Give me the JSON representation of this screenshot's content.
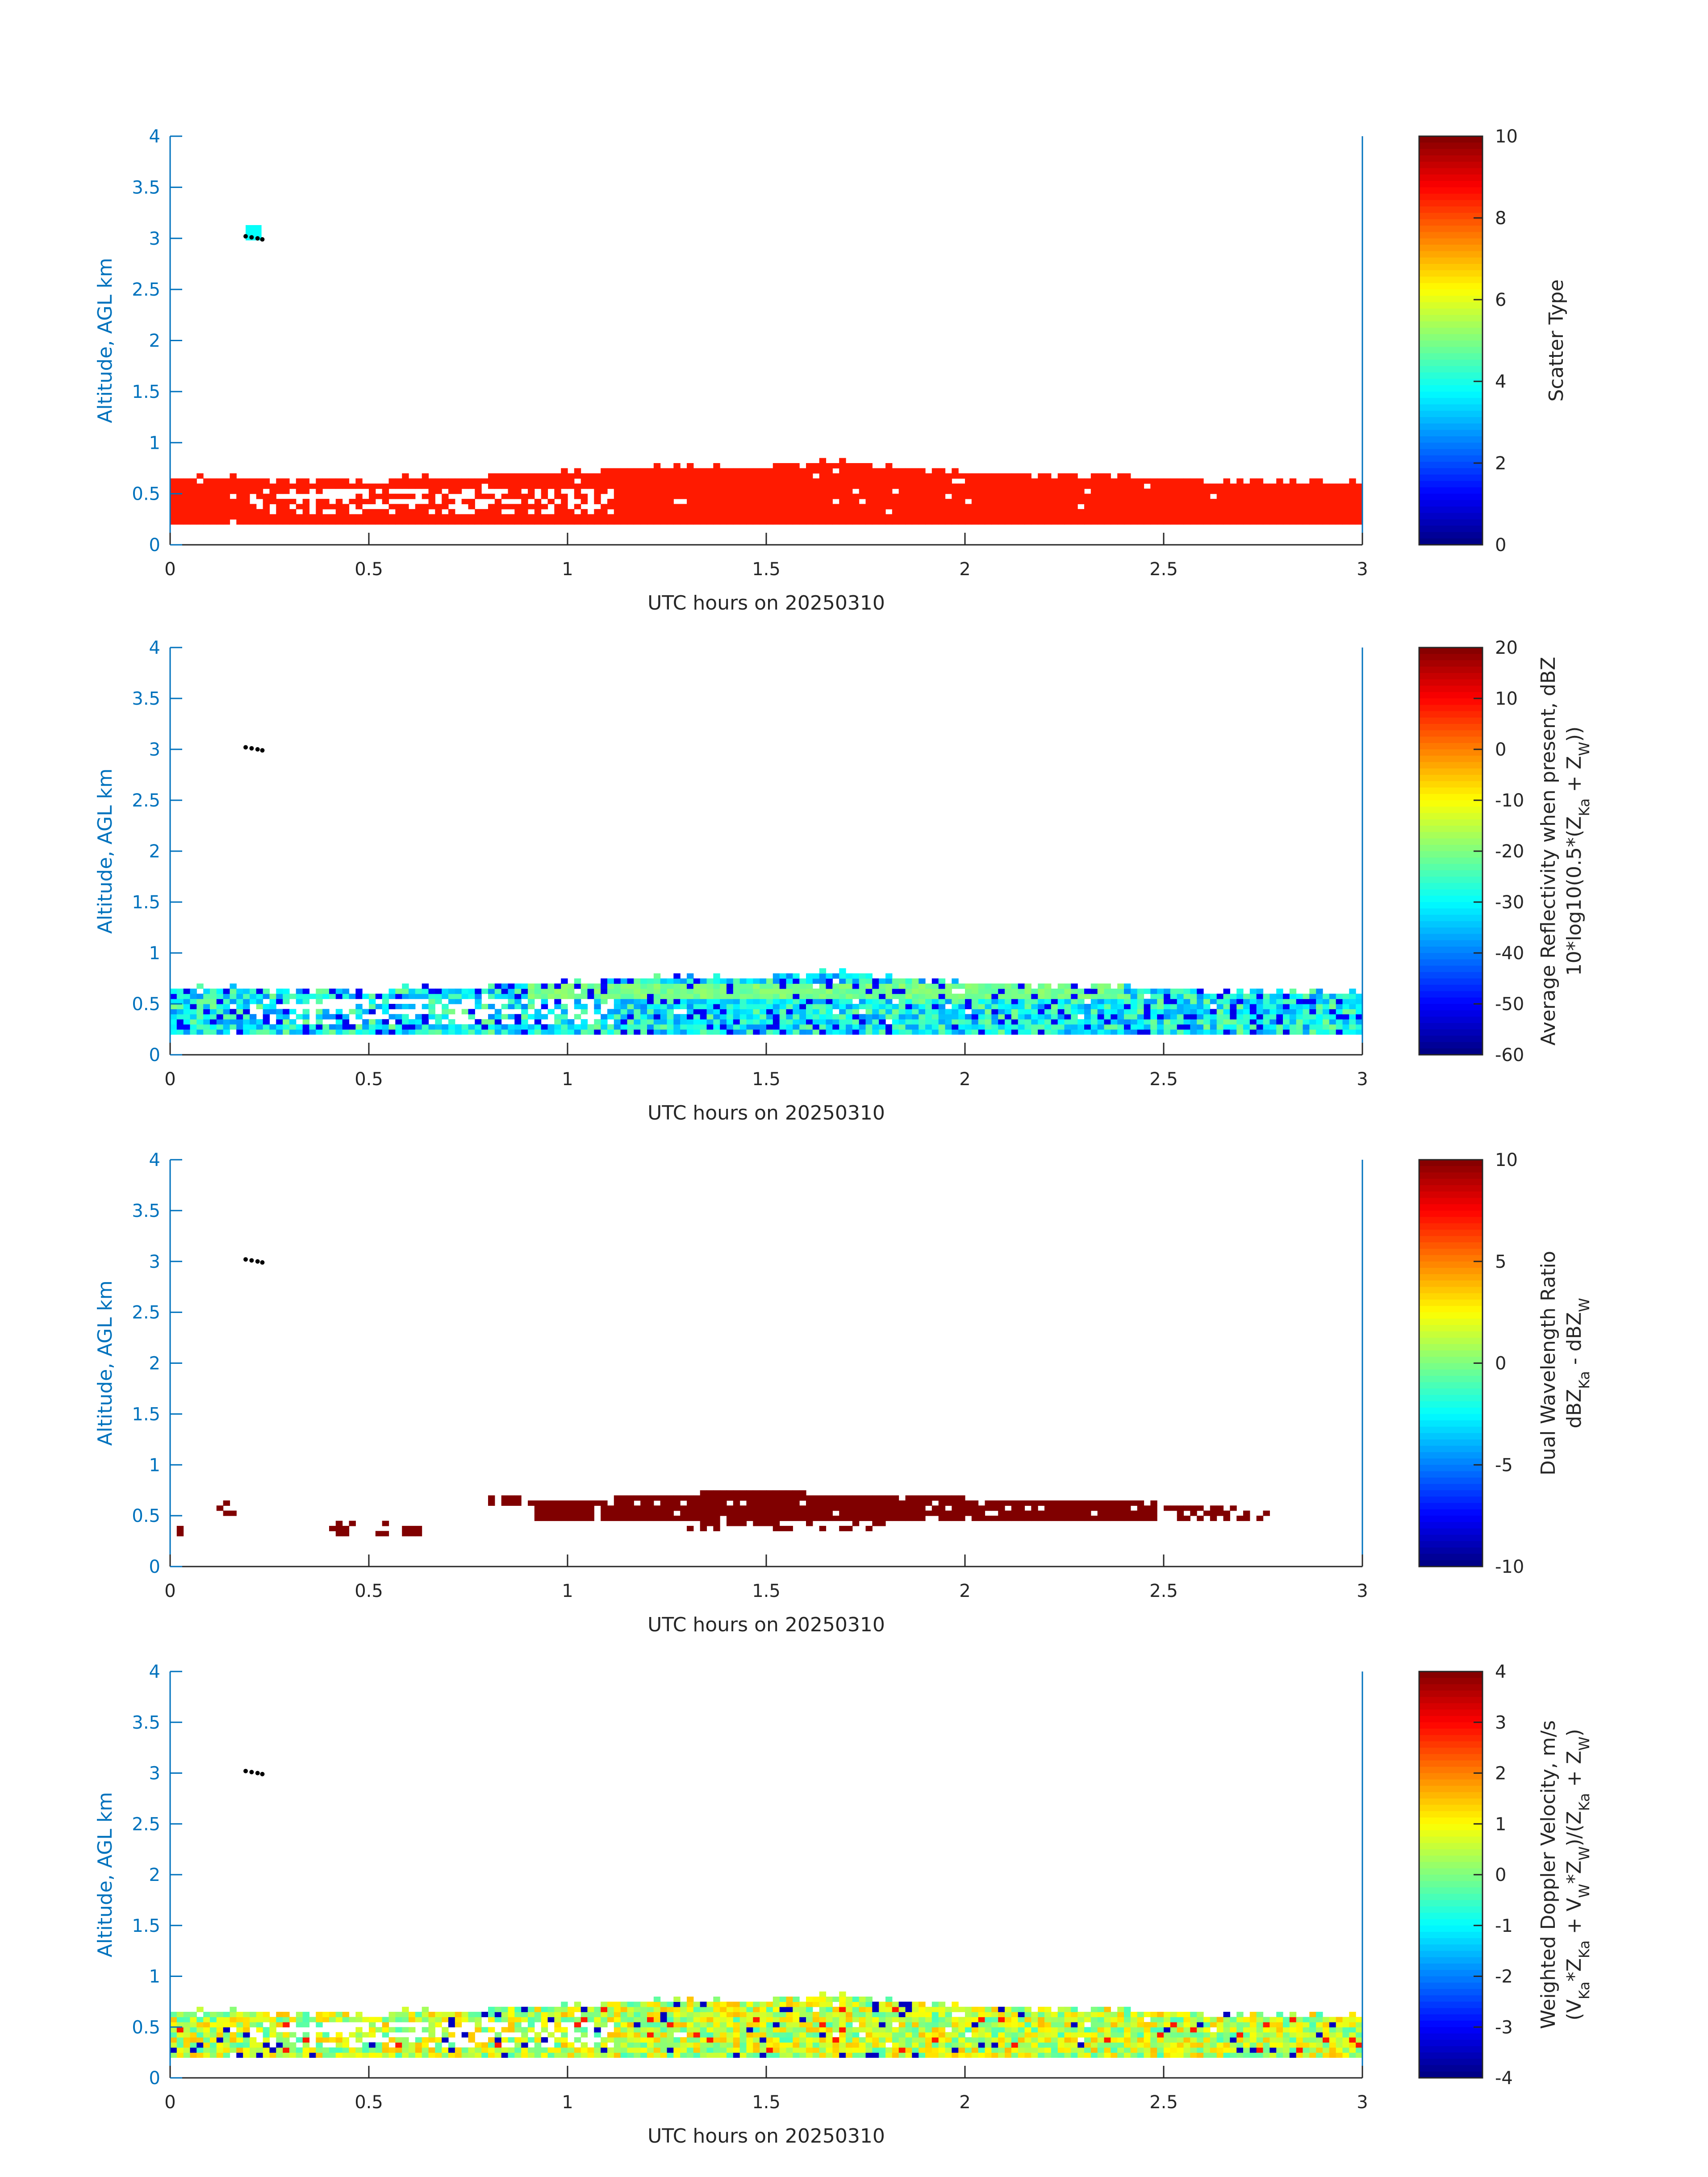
{
  "figure_title": "",
  "chart_data": [
    {
      "type": "heatmap",
      "panel": "Scatter Type",
      "xlabel": "UTC hours on 20250310",
      "ylabel": "Altitude, AGL km",
      "xlim": [
        0,
        3
      ],
      "ylim": [
        0,
        4
      ],
      "xticks": [
        "0",
        "0.5",
        "1",
        "1.5",
        "2",
        "2.5",
        "3"
      ],
      "yticks": [
        "0",
        "0.5",
        "1",
        "1.5",
        "2",
        "2.5",
        "3",
        "3.5",
        "4"
      ],
      "colorbar_label": [
        "Scatter Type"
      ],
      "colorbar_range": [
        0,
        10
      ],
      "colorbar_ticks": [
        "0",
        "2",
        "4",
        "6",
        "8",
        "10"
      ],
      "colormap": "jet",
      "layer_base_km": 0.2,
      "layer_top_km": [
        0.65,
        0.65,
        0.6,
        0.65,
        0.65,
        0.7,
        0.75,
        0.75,
        0.75,
        0.8,
        0.8,
        0.7,
        0.65,
        0.6
      ],
      "layer_top_x": [
        0,
        0.25,
        0.5,
        0.6,
        0.75,
        1.0,
        1.2,
        1.3,
        1.5,
        1.6,
        1.75,
        2.0,
        2.5,
        3.0
      ],
      "dominant_value": 8.5,
      "elevated_echo": {
        "x": [
          0.19,
          0.23
        ],
        "alt_km": [
          2.98,
          3.13
        ],
        "value": 3.8
      },
      "gaps": "scattered gaps 0.1–0.55 km between 0.15 and 1.1 h"
    },
    {
      "type": "heatmap",
      "panel": "Average Reflectivity",
      "xlabel": "UTC hours on 20250310",
      "ylabel": "Altitude, AGL km",
      "xlim": [
        0,
        3
      ],
      "ylim": [
        0,
        4
      ],
      "xticks": [
        "0",
        "0.5",
        "1",
        "1.5",
        "2",
        "2.5",
        "3"
      ],
      "yticks": [
        "0",
        "0.5",
        "1",
        "1.5",
        "2",
        "2.5",
        "3",
        "3.5",
        "4"
      ],
      "colorbar_label": [
        "Average Reflectivity when present, dBZ",
        "10*log10(0.5*(Z",
        "Ka",
        " + Z",
        "W",
        "))"
      ],
      "colorbar_range": [
        -60,
        20
      ],
      "colorbar_ticks": [
        "-60",
        "-50",
        "-40",
        "-30",
        "-20",
        "-10",
        "0",
        "10",
        "20"
      ],
      "colormap": "jet",
      "typical_range_dbz": [
        -50,
        -20
      ],
      "peak_band_dbz": -20
    },
    {
      "type": "heatmap",
      "panel": "Dual Wavelength Ratio",
      "xlabel": "UTC hours on 20250310",
      "ylabel": "Altitude, AGL km",
      "xlim": [
        0,
        3
      ],
      "ylim": [
        0,
        4
      ],
      "xticks": [
        "0",
        "0.5",
        "1",
        "1.5",
        "2",
        "2.5",
        "3"
      ],
      "yticks": [
        "0",
        "0.5",
        "1",
        "1.5",
        "2",
        "2.5",
        "3",
        "3.5",
        "4"
      ],
      "colorbar_label": [
        "Dual Wavelength Ratio",
        "dBZ",
        "Ka",
        " - dBZ",
        "W"
      ],
      "colorbar_range": [
        -10,
        10
      ],
      "colorbar_ticks": [
        "-10",
        "-5",
        "0",
        "5",
        "10"
      ],
      "colormap": "jet",
      "dominant_value": 10,
      "main_band": {
        "x": [
          0.92,
          2.48
        ],
        "alt_km": [
          0.45,
          0.78
        ]
      }
    },
    {
      "type": "heatmap",
      "panel": "Weighted Doppler Velocity",
      "xlabel": "UTC hours on 20250310",
      "ylabel": "Altitude, AGL km",
      "xlim": [
        0,
        3
      ],
      "ylim": [
        0,
        4
      ],
      "xticks": [
        "0",
        "0.5",
        "1",
        "1.5",
        "2",
        "2.5",
        "3"
      ],
      "yticks": [
        "0",
        "0.5",
        "1",
        "1.5",
        "2",
        "2.5",
        "3",
        "3.5",
        "4"
      ],
      "colorbar_label": [
        "Weighted Doppler Velocity, m/s",
        "(V",
        "Ka",
        "*Z",
        "Ka",
        " + V",
        "W",
        "*Z",
        "W",
        ")/(Z",
        "Ka",
        " + Z",
        "W",
        ")"
      ],
      "colorbar_range": [
        -4,
        4
      ],
      "colorbar_ticks": [
        "-4",
        "-3",
        "-2",
        "-1",
        "0",
        "1",
        "2",
        "3",
        "4"
      ],
      "colormap": "jet",
      "typical_range_ms": [
        -1,
        2
      ]
    }
  ],
  "colors": {
    "axis_blue": "#0072BD",
    "axis_dark": "#262626",
    "layer_orange": "#FF4500",
    "dwr_dark_red": "#800000",
    "marker_black": "#000000"
  }
}
